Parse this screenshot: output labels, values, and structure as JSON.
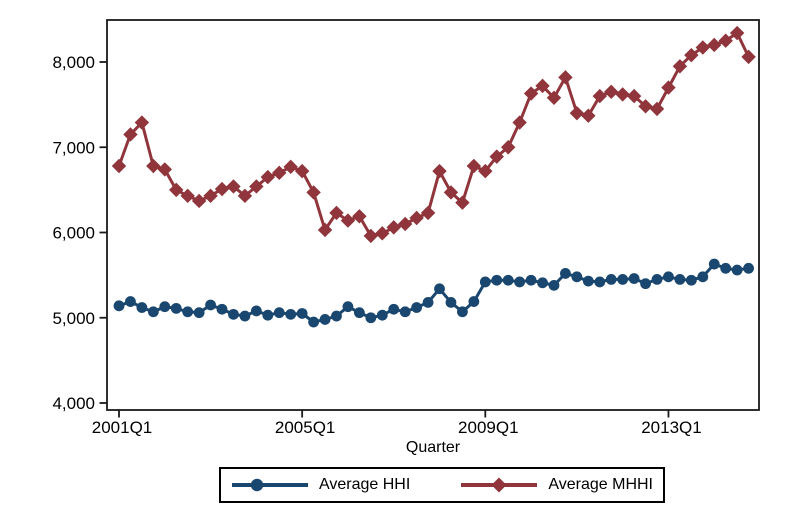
{
  "figure": {
    "xlabel": "Quarter",
    "y_axis": {
      "tick_values": [
        4000,
        5000,
        6000,
        7000,
        8000
      ],
      "tick_labels": [
        "4,000",
        "5,000",
        "6,000",
        "7,000",
        "8,000"
      ]
    },
    "x_axis": {
      "tick_indices": [
        0,
        16,
        32,
        48
      ],
      "tick_labels": [
        "2001Q1",
        "2005Q1",
        "2009Q1",
        "2013Q1"
      ]
    },
    "legend": {
      "position": "bottom",
      "entries": [
        {
          "label": "Average HHI",
          "color": "#1a476f",
          "marker": "circle"
        },
        {
          "label": "Average MHHI",
          "color": "#90353b",
          "marker": "diamond"
        }
      ]
    },
    "colors": {
      "hhi": "#1a476f",
      "mhhi": "#90353b",
      "frame": "#1a1a1a",
      "background": "#ffffff"
    }
  },
  "chart_data": {
    "type": "line",
    "title": "",
    "xlabel": "Quarter",
    "ylabel": "",
    "ylim": [
      3900,
      8550
    ],
    "grid": false,
    "legend_position": "bottom",
    "x": [
      "2001Q1",
      "2001Q2",
      "2001Q3",
      "2001Q4",
      "2002Q1",
      "2002Q2",
      "2002Q3",
      "2002Q4",
      "2003Q1",
      "2003Q2",
      "2003Q3",
      "2003Q4",
      "2004Q1",
      "2004Q2",
      "2004Q3",
      "2004Q4",
      "2005Q1",
      "2005Q2",
      "2005Q3",
      "2005Q4",
      "2006Q1",
      "2006Q2",
      "2006Q3",
      "2006Q4",
      "2007Q1",
      "2007Q2",
      "2007Q3",
      "2007Q4",
      "2008Q1",
      "2008Q2",
      "2008Q3",
      "2008Q4",
      "2009Q1",
      "2009Q2",
      "2009Q3",
      "2009Q4",
      "2010Q1",
      "2010Q2",
      "2010Q3",
      "2010Q4",
      "2011Q1",
      "2011Q2",
      "2011Q3",
      "2011Q4",
      "2012Q1",
      "2012Q2",
      "2012Q3",
      "2012Q4",
      "2013Q1",
      "2013Q2",
      "2013Q3",
      "2013Q4",
      "2014Q1",
      "2014Q2",
      "2014Q3",
      "2014Q4"
    ],
    "series": [
      {
        "name": "Average HHI",
        "color": "#1a476f",
        "marker": "circle",
        "values": [
          5140,
          5190,
          5120,
          5070,
          5130,
          5110,
          5070,
          5060,
          5150,
          5100,
          5040,
          5020,
          5080,
          5030,
          5060,
          5040,
          5050,
          4950,
          4980,
          5020,
          5130,
          5060,
          5000,
          5030,
          5100,
          5070,
          5120,
          5180,
          5340,
          5180,
          5070,
          5190,
          5420,
          5440,
          5440,
          5420,
          5440,
          5410,
          5380,
          5520,
          5480,
          5430,
          5420,
          5450,
          5450,
          5460,
          5400,
          5450,
          5480,
          5450,
          5440,
          5480,
          5630,
          5580,
          5560,
          5580
        ]
      },
      {
        "name": "Average MHHI",
        "color": "#90353b",
        "marker": "diamond",
        "values": [
          6780,
          7150,
          7290,
          6780,
          6740,
          6500,
          6430,
          6370,
          6430,
          6510,
          6540,
          6430,
          6540,
          6650,
          6700,
          6770,
          6720,
          6470,
          6030,
          6230,
          6140,
          6190,
          5960,
          5990,
          6060,
          6100,
          6170,
          6230,
          6720,
          6470,
          6350,
          6780,
          6720,
          6890,
          7000,
          7290,
          7630,
          7720,
          7580,
          7820,
          7400,
          7370,
          7600,
          7650,
          7620,
          7600,
          7480,
          7450,
          7700,
          7950,
          8080,
          8170,
          8200,
          8250,
          8340,
          8060
        ]
      }
    ]
  }
}
